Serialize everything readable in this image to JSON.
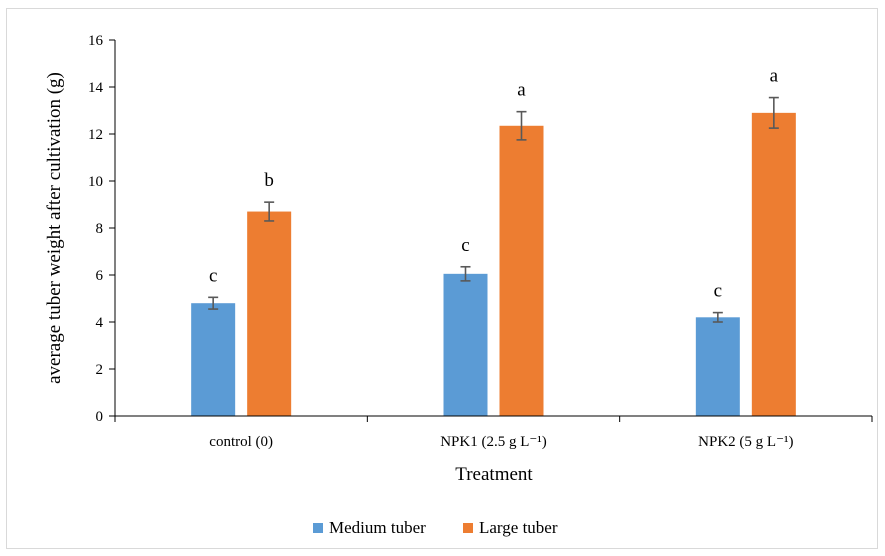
{
  "chart_data": {
    "type": "bar",
    "xlabel": "Treatment",
    "ylabel": "average tuber weight after cultivation (g)",
    "ylim": [
      0,
      16
    ],
    "yticks": [
      0,
      2,
      4,
      6,
      8,
      10,
      12,
      14,
      16
    ],
    "grid": false,
    "legend_position": "bottom",
    "categories": [
      "control (0)",
      "NPK1 (2.5 g L⁻¹)",
      "NPK2 (5 g L⁻¹)"
    ],
    "series": [
      {
        "name": "Medium tuber",
        "color": "#5b9bd5",
        "values": [
          4.8,
          6.05,
          4.2
        ],
        "errors": [
          0.25,
          0.3,
          0.2
        ],
        "letters": [
          "c",
          "c",
          "c"
        ]
      },
      {
        "name": "Large tuber",
        "color": "#ed7d31",
        "values": [
          8.7,
          12.35,
          12.9
        ],
        "errors": [
          0.4,
          0.6,
          0.65
        ],
        "letters": [
          "b",
          "a",
          "a"
        ]
      }
    ]
  }
}
